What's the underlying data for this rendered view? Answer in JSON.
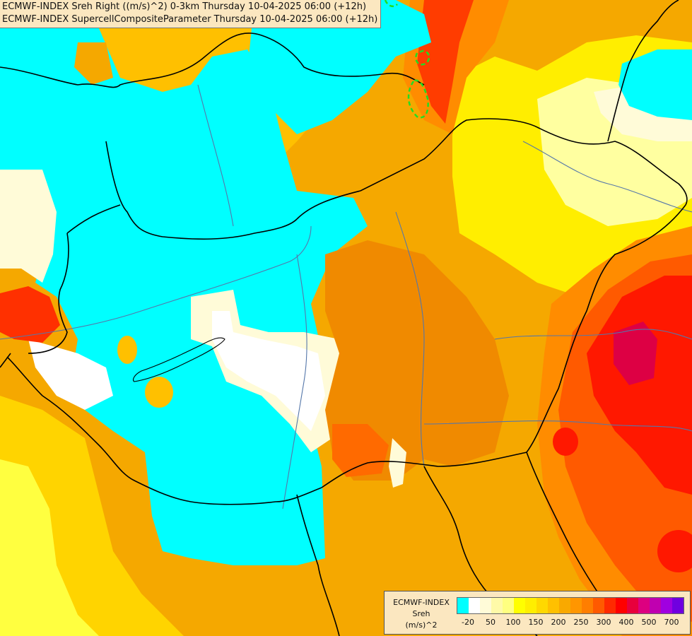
{
  "header": {
    "line1": "ECMWF-INDEX Sreh Right ((m/s)^2) 0-3km Thursday 10-04-2025 06:00 (+12h)",
    "line2": "ECMWF-INDEX SupercellCompositeParameter Thursday 10-04-2025 06:00 (+12h)"
  },
  "legend": {
    "title_line1": "ECMWF-INDEX",
    "title_line2": "Sreh",
    "title_line3": "(m/s)^2",
    "colors": [
      "#00ffff",
      "#ffffff",
      "#fffbd8",
      "#fffaa8",
      "#ffff80",
      "#ffff00",
      "#ffee00",
      "#ffd800",
      "#ffc000",
      "#f9a900",
      "#ff9600",
      "#ff7e00",
      "#ff5a00",
      "#ff2a00",
      "#ff0000",
      "#e8003c",
      "#dd0080",
      "#c000b0",
      "#a000e0",
      "#7000e0",
      "#4000c0",
      "#2000a0",
      "#000080"
    ],
    "tick_labels": [
      "-20",
      "50",
      "100",
      "150",
      "200",
      "250",
      "300",
      "400",
      "500",
      "700"
    ]
  },
  "colors": {
    "cyan": "#00ffff",
    "white": "#ffffff",
    "cream": "#fffbd8",
    "pale_yellow": "#ffffa0",
    "yellow": "#ffff00",
    "gold": "#ffd400",
    "amber": "#f9b000",
    "orange": "#f08a00",
    "dark_orange": "#ff6a00",
    "red": "#ff1800",
    "crimson": "#dd0044",
    "border": "#000000",
    "river": "#5577aa",
    "scp_contour": "#22dd22"
  }
}
